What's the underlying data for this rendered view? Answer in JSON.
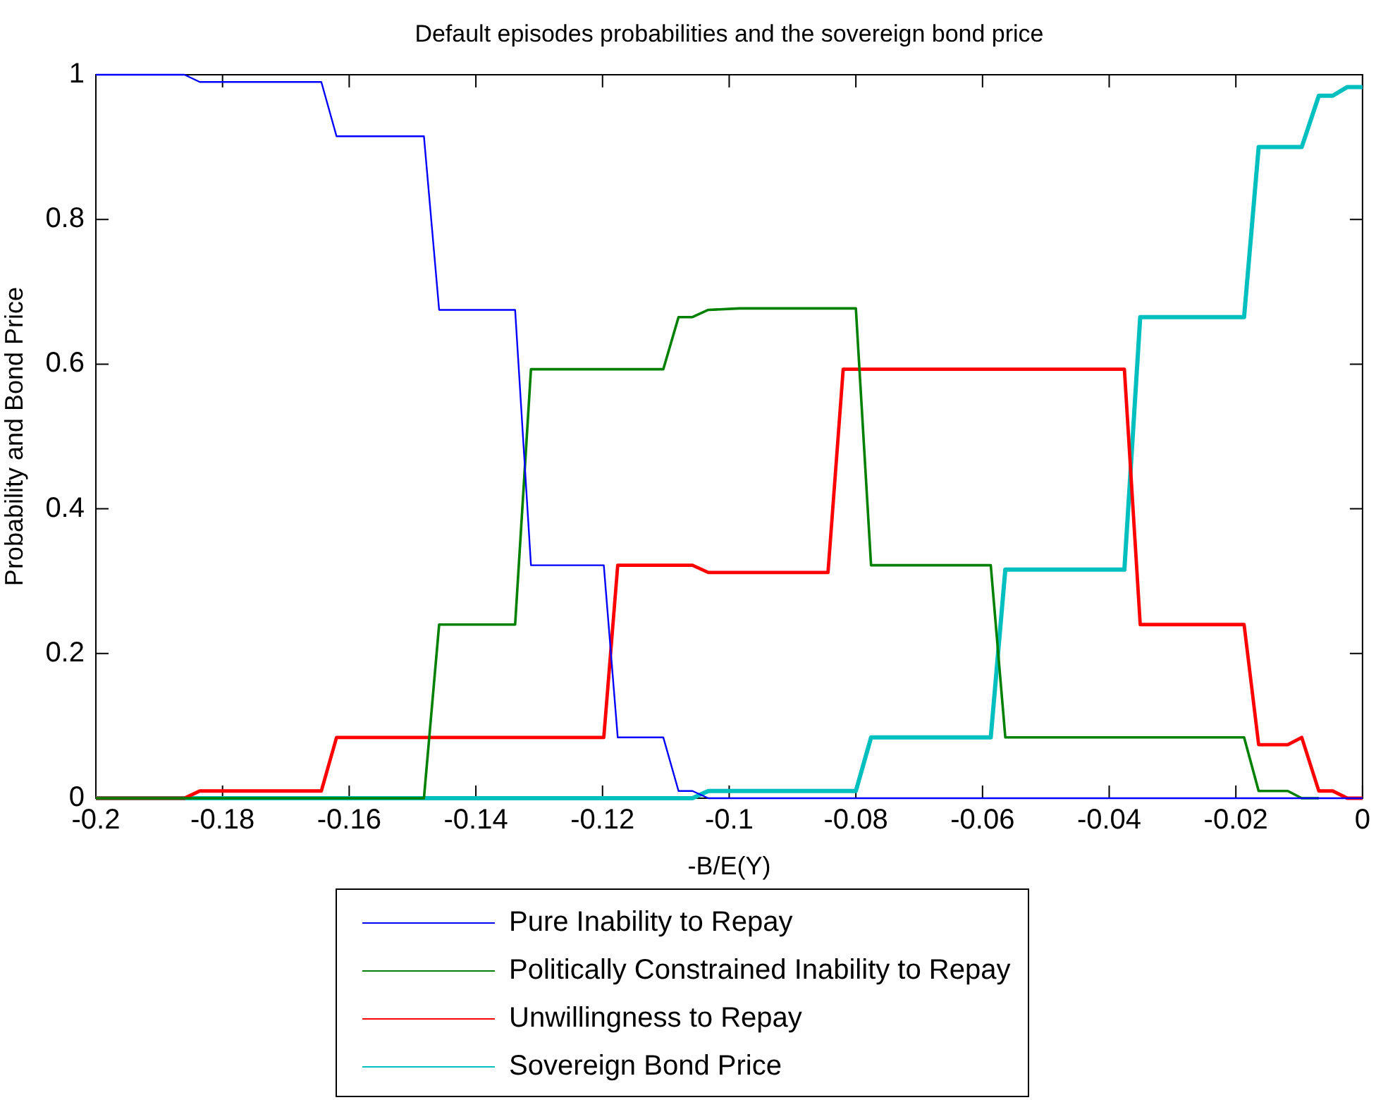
{
  "chart_data": {
    "type": "line",
    "title": "Default episodes probabilities and the sovereign bond price",
    "xlabel": "-B/E(Y)",
    "ylabel": "Probability and Bond Price",
    "x": [
      -0.2,
      -0.186,
      -0.1836,
      -0.1644,
      -0.162,
      -0.1482,
      -0.1458,
      -0.1338,
      -0.1313,
      -0.1198,
      -0.1176,
      -0.1104,
      -0.108,
      -0.1058,
      -0.1033,
      -0.0984,
      -0.0844,
      -0.082,
      -0.08,
      -0.0776,
      -0.0587,
      -0.0564,
      -0.0376,
      -0.0351,
      -0.0187,
      -0.0164,
      -0.0118,
      -0.0096,
      -0.0069,
      -0.0047,
      -0.0024,
      0
    ],
    "series": [
      {
        "name": "Pure Inability to Repay",
        "color": "#0000ff",
        "values": [
          1,
          1,
          0.99,
          0.99,
          0.915,
          0.915,
          0.675,
          0.675,
          0.322,
          0.322,
          0.084,
          0.084,
          0.01,
          0.01,
          0,
          0,
          0,
          0,
          0,
          0,
          0,
          0,
          0,
          0,
          0,
          0,
          0,
          0,
          0,
          0,
          0,
          0
        ]
      },
      {
        "name": "Politically Constrained Inability to Repay",
        "color": "#008000",
        "values": [
          0,
          0,
          0,
          0,
          0,
          0,
          0.24,
          0.24,
          0.593,
          0.593,
          0.593,
          0.593,
          0.665,
          0.665,
          0.675,
          0.677,
          0.677,
          0.677,
          0.677,
          0.322,
          0.322,
          0.084,
          0.084,
          0.084,
          0.084,
          0.01,
          0.01,
          0,
          0,
          null,
          null,
          null
        ]
      },
      {
        "name": "Unwillingness to Repay",
        "color": "#ff0000",
        "values": [
          0,
          0,
          0.01,
          0.01,
          0.084,
          0.084,
          0.084,
          0.084,
          0.084,
          0.084,
          0.322,
          0.322,
          0.322,
          0.322,
          0.312,
          0.312,
          0.312,
          0.593,
          0.593,
          0.593,
          0.593,
          0.593,
          0.593,
          0.24,
          0.24,
          0.074,
          0.074,
          0.084,
          0.01,
          0.01,
          0,
          0
        ]
      },
      {
        "name": "Sovereign Bond Price",
        "color": "#00bfbf",
        "values": [
          0,
          0,
          0,
          0,
          0,
          0,
          0,
          0,
          0,
          0,
          0,
          0,
          0,
          0,
          0.01,
          0.01,
          0.01,
          0.01,
          0.01,
          0.084,
          0.084,
          0.316,
          0.316,
          0.665,
          0.665,
          0.9,
          0.9,
          0.9,
          0.971,
          0.971,
          0.983,
          0.983
        ]
      }
    ],
    "xlim": [
      -0.2,
      0
    ],
    "xticks": [
      -0.2,
      -0.18,
      -0.16,
      -0.14,
      -0.12,
      -0.1,
      -0.08,
      -0.06,
      -0.04,
      -0.02,
      0
    ],
    "ylim": [
      0,
      1
    ],
    "yticks": [
      0,
      0.2,
      0.4,
      0.6,
      0.8,
      1
    ],
    "legend": "bottom",
    "marker": "none",
    "line_style": "solid"
  }
}
